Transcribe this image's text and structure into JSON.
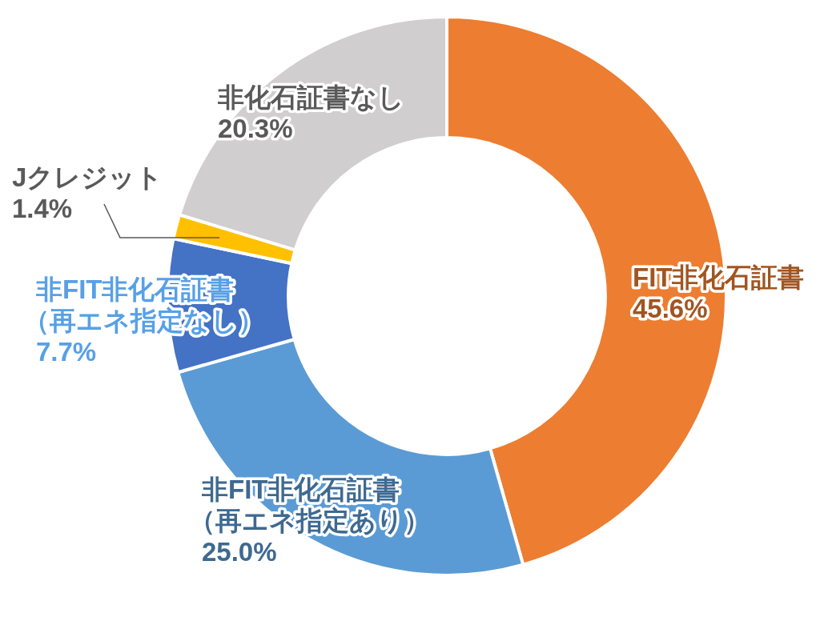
{
  "chart_data": {
    "type": "donut",
    "categories": [
      "FIT非化石証書",
      "非FIT非化石証書（再エネ指定あり）",
      "非FIT非化石証書（再エネ指定なし）",
      "Jクレジット",
      "非化石証書なし"
    ],
    "values": [
      45.6,
      25.0,
      7.7,
      1.4,
      20.3
    ],
    "value_labels": [
      "45.6%",
      "25.0%",
      "7.7%",
      "1.4%",
      "20.3%"
    ],
    "colors": [
      "#ed7d31",
      "#5b9bd5",
      "#4472c4",
      "#ffc000",
      "#d0cece"
    ]
  }
}
